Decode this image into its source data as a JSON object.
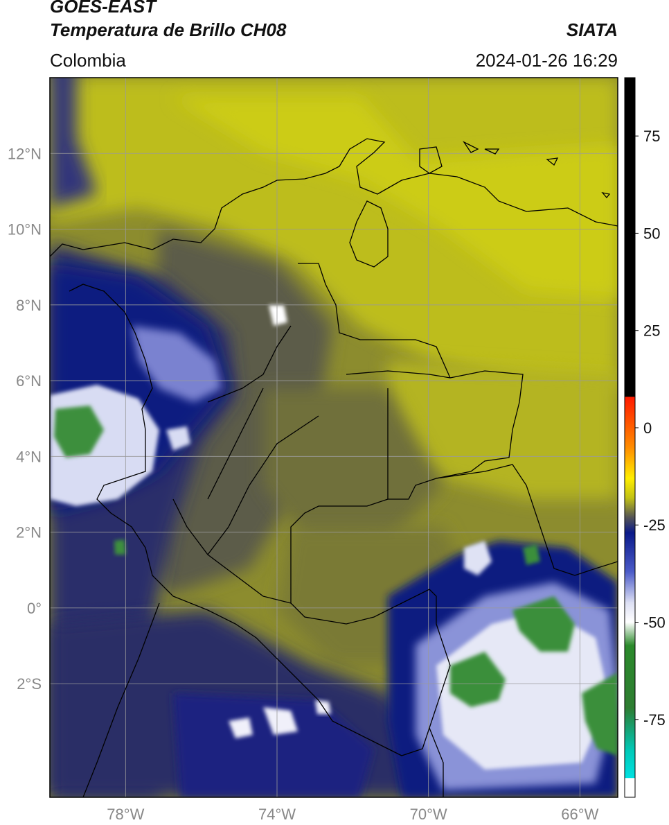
{
  "header": {
    "satellite": "GOES-EAST",
    "product": "Temperatura de Brillo CH08",
    "region": "Colombia",
    "agency": "SIATA",
    "timestamp": "2024-01-26 16:29"
  },
  "map": {
    "lon_range": [
      -80,
      -65
    ],
    "lat_range": [
      -5,
      14
    ],
    "lat_ticks": [
      {
        "value": 12,
        "label": "12°N"
      },
      {
        "value": 10,
        "label": "10°N"
      },
      {
        "value": 8,
        "label": "8°N"
      },
      {
        "value": 6,
        "label": "6°N"
      },
      {
        "value": 4,
        "label": "4°N"
      },
      {
        "value": 2,
        "label": "2°N"
      },
      {
        "value": 0,
        "label": "0°"
      },
      {
        "value": -2,
        "label": "2°S"
      }
    ],
    "lon_ticks": [
      {
        "value": -78,
        "label": "78°W"
      },
      {
        "value": -74,
        "label": "74°W"
      },
      {
        "value": -70,
        "label": "70°W"
      },
      {
        "value": -66,
        "label": "66°W"
      }
    ],
    "gridlines": true
  },
  "colorbar": {
    "range": [
      -95,
      90
    ],
    "ticks": [
      {
        "value": 75,
        "label": "75"
      },
      {
        "value": 50,
        "label": "50"
      },
      {
        "value": 25,
        "label": "25"
      },
      {
        "value": 0,
        "label": "0"
      },
      {
        "value": -25,
        "label": "-25"
      },
      {
        "value": -50,
        "label": "-50"
      },
      {
        "value": -75,
        "label": "-75"
      }
    ],
    "stops": [
      {
        "value": 90,
        "color": "#000000"
      },
      {
        "value": 8,
        "color": "#000000"
      },
      {
        "value": 7.9,
        "color": "#ff1a00"
      },
      {
        "value": -5,
        "color": "#ff8c00"
      },
      {
        "value": -13,
        "color": "#ffee00"
      },
      {
        "value": -18,
        "color": "#c2c214"
      },
      {
        "value": -23,
        "color": "#555555"
      },
      {
        "value": -27,
        "color": "#0a1a8a"
      },
      {
        "value": -37,
        "color": "#4b5bc8"
      },
      {
        "value": -45,
        "color": "#dde0f4"
      },
      {
        "value": -50,
        "color": "#ffffff"
      },
      {
        "value": -56,
        "color": "#2b8a2b"
      },
      {
        "value": -72,
        "color": "#2e7d32"
      },
      {
        "value": -83,
        "color": "#00c9b8"
      },
      {
        "value": -90,
        "color": "#00e0e0"
      },
      {
        "value": -90.1,
        "color": "#ffffff"
      },
      {
        "value": -95,
        "color": "#ffffff"
      }
    ]
  }
}
